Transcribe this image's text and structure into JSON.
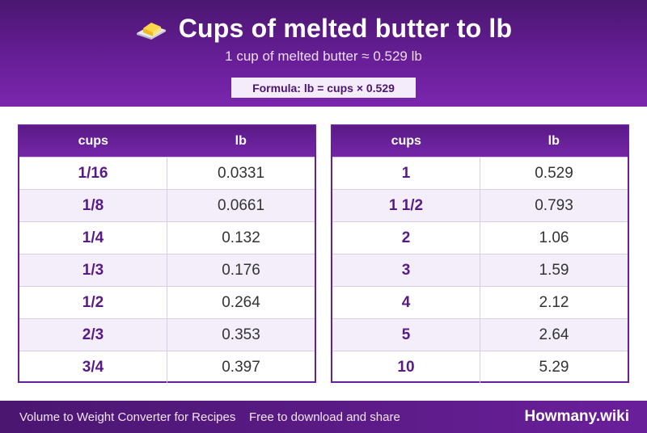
{
  "header": {
    "title": "Cups of melted butter to lb",
    "subtitle": "1 cup of melted butter ≈ 0.529 lb",
    "formula": "Formula: lb = cups × 0.529",
    "icon": "butter-icon"
  },
  "tables": [
    {
      "col1": "cups",
      "col2": "lb",
      "rows": [
        {
          "cups": "1/16",
          "lb": "0.0331"
        },
        {
          "cups": "1/8",
          "lb": "0.0661"
        },
        {
          "cups": "1/4",
          "lb": "0.132"
        },
        {
          "cups": "1/3",
          "lb": "0.176"
        },
        {
          "cups": "1/2",
          "lb": "0.264"
        },
        {
          "cups": "2/3",
          "lb": "0.353"
        },
        {
          "cups": "3/4",
          "lb": "0.397"
        }
      ]
    },
    {
      "col1": "cups",
      "col2": "lb",
      "rows": [
        {
          "cups": "1",
          "lb": "0.529"
        },
        {
          "cups": "1 1/2",
          "lb": "0.793"
        },
        {
          "cups": "2",
          "lb": "1.06"
        },
        {
          "cups": "3",
          "lb": "1.59"
        },
        {
          "cups": "4",
          "lb": "2.12"
        },
        {
          "cups": "5",
          "lb": "2.64"
        },
        {
          "cups": "10",
          "lb": "5.29"
        }
      ]
    }
  ],
  "footer": {
    "left": "Volume to Weight Converter for Recipes",
    "middle": "Free to download and share",
    "brand": "Howmany.wiki"
  },
  "colors": {
    "primary": "#6a1f9a",
    "dark": "#4a1670"
  }
}
